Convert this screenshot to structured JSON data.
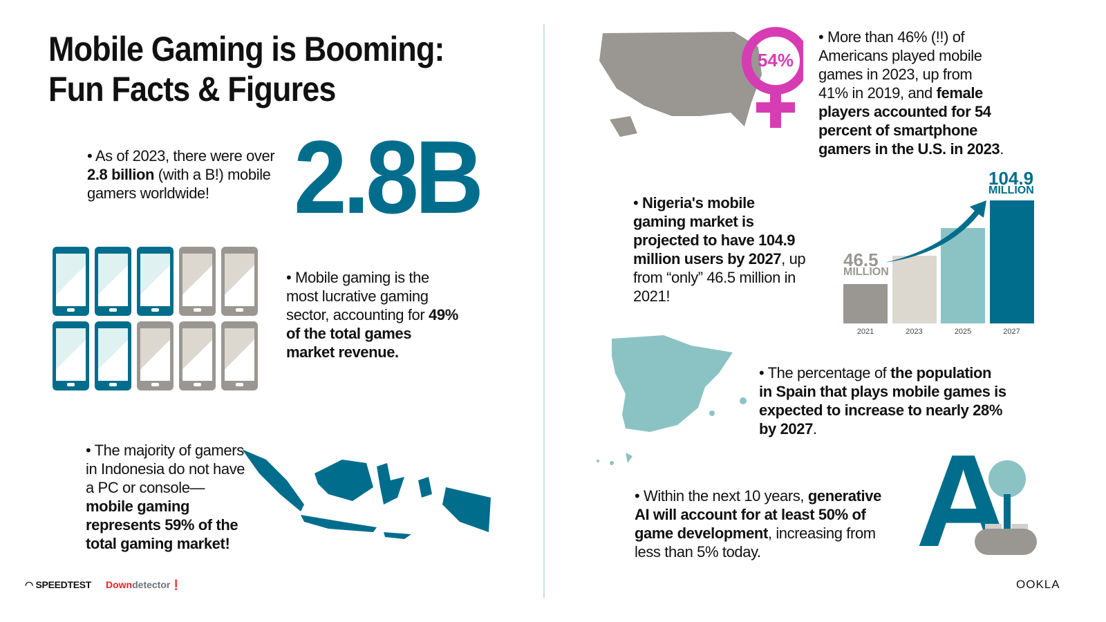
{
  "title": [
    "Mobile Gaming is Booming:",
    "Fun Facts & Figures"
  ],
  "gamers": {
    "pre": "As of 2023, there were over ",
    "bold": "2.8 billion",
    "post": " (with a B!) mobile gamers worldwide!",
    "big": "2.8B"
  },
  "revenue": {
    "pre": "Mobile gaming is the most lucrative gaming sector, accounting for ",
    "bold": "49% of the total games market revenue.",
    "share_of_phones_highlighted": 0.49
  },
  "indonesia": {
    "pre": "The majority of gamers in Indonesia do not have a PC or console—",
    "bold": "mobile gaming represents 59% of the total gaming market!"
  },
  "us": {
    "pre": "More than 46% (!!) of Americans played mobile games in 2023, up from 41% in 2019, and ",
    "bold": "female players accounted for 54 percent of smartphone gamers in the U.S. in 2023",
    "post": ".",
    "badge": "54%"
  },
  "nigeria": {
    "bold1": "Nigeria's mobile gaming market is projected to have 104.9 million users by 2027",
    "post": ", up from “only” 46.5 million in 2021!"
  },
  "spain": {
    "pre": "The percentage of ",
    "bold": "the population in Spain that plays mobile games is expected to increase to nearly 28% by 2027",
    "post": "."
  },
  "ai": {
    "pre": "Within the next 10 years, ",
    "bold": "generative AI will account for at least 50% of game development",
    "post": ", increasing from less than 5% today.",
    "logo": "A"
  },
  "chart_data": {
    "type": "bar",
    "categories": [
      "2021",
      "2023",
      "2025",
      "2027"
    ],
    "values": [
      46.5,
      null,
      null,
      104.9
    ],
    "labels": [
      {
        "value": "46.5",
        "unit": "MILLION"
      },
      null,
      null,
      {
        "value": "104.9",
        "unit": "MILLION"
      }
    ],
    "colors": [
      "#9a9792",
      "#dcd8d0",
      "#8bc3c5",
      "#006d8c"
    ]
  },
  "footer": {
    "speedtest": "SPEEDTEST",
    "downdetector_a": "Down",
    "downdetector_b": "detector",
    "ookla": "OOKLA"
  },
  "colors": {
    "teal": "#006d8c",
    "pink": "#d63cb4",
    "gray": "#9a9792"
  }
}
